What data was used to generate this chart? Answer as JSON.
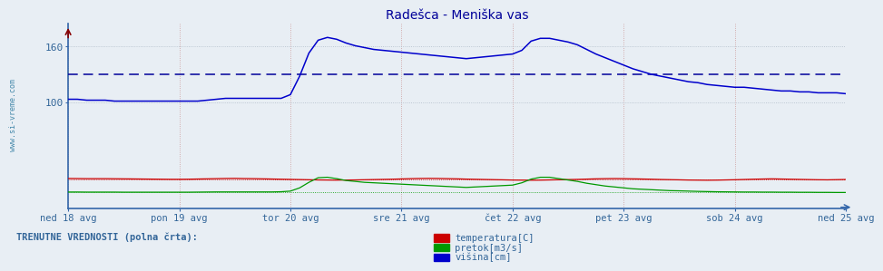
{
  "title": "Radešca - Meniška vas",
  "title_color": "#000099",
  "background_color": "#e8eef4",
  "plot_bg_color": "#e8eef4",
  "x_labels": [
    "ned 18 avg",
    "pon 19 avg",
    "tor 20 avg",
    "sre 21 avg",
    "čet 22 avg",
    "pet 23 avg",
    "sob 24 avg",
    "ned 25 avg"
  ],
  "x_positions": [
    0,
    12,
    24,
    36,
    48,
    60,
    72,
    84
  ],
  "yticks": [
    100,
    160
  ],
  "ylim_min": -15,
  "ylim_max": 185,
  "xlim_min": 0,
  "xlim_max": 84,
  "avg_line_value": 130,
  "avg_line_color": "#000099",
  "hgrid_color": "#b0bcc8",
  "vgrid_color": "#cc9999",
  "temp_color": "#cc0000",
  "flow_color": "#009900",
  "height_color": "#0000cc",
  "axis_color": "#3366aa",
  "axis_label_color": "#336699",
  "watermark_color": "#4488aa",
  "legend_label_temp": "temperatura[C]",
  "legend_label_flow": "pretok[m3/s]",
  "legend_label_height": "višina[cm]",
  "bottom_label": "TRENUTNE VREDNOSTI (polna črta):",
  "n_points": 85,
  "height_data": [
    103,
    103,
    102,
    102,
    102,
    101,
    101,
    101,
    101,
    101,
    101,
    101,
    101,
    101,
    101,
    102,
    103,
    104,
    104,
    104,
    104,
    104,
    104,
    104,
    108,
    128,
    153,
    167,
    170,
    168,
    164,
    161,
    159,
    157,
    156,
    155,
    154,
    153,
    152,
    151,
    150,
    149,
    148,
    147,
    148,
    149,
    150,
    151,
    152,
    156,
    166,
    169,
    169,
    167,
    165,
    162,
    157,
    152,
    148,
    144,
    140,
    136,
    133,
    130,
    128,
    126,
    124,
    122,
    121,
    119,
    118,
    117,
    116,
    116,
    115,
    114,
    113,
    112,
    112,
    111,
    111,
    110,
    110,
    110,
    109
  ],
  "temp_data": [
    17.2,
    17.1,
    17.0,
    17.0,
    17.0,
    16.9,
    16.8,
    16.7,
    16.6,
    16.5,
    16.4,
    16.3,
    16.3,
    16.4,
    16.6,
    16.8,
    17.0,
    17.2,
    17.3,
    17.1,
    17.0,
    16.8,
    16.6,
    16.4,
    16.2,
    16.0,
    15.8,
    15.6,
    15.5,
    15.4,
    15.5,
    15.6,
    15.8,
    16.0,
    16.2,
    16.4,
    16.7,
    17.0,
    17.2,
    17.3,
    17.2,
    17.0,
    16.8,
    16.5,
    16.3,
    16.1,
    15.9,
    15.7,
    15.5,
    15.4,
    15.3,
    15.4,
    15.6,
    15.8,
    16.0,
    16.2,
    16.5,
    16.8,
    17.0,
    17.1,
    17.0,
    16.8,
    16.6,
    16.4,
    16.1,
    15.9,
    15.7,
    15.5,
    15.4,
    15.3,
    15.4,
    15.6,
    15.8,
    16.1,
    16.4,
    16.6,
    16.8,
    16.6,
    16.4,
    16.2,
    16.0,
    15.8,
    15.7,
    15.9,
    16.1
  ],
  "flow_data": [
    2.5,
    2.5,
    2.4,
    2.4,
    2.4,
    2.4,
    2.3,
    2.3,
    2.3,
    2.3,
    2.3,
    2.3,
    2.3,
    2.3,
    2.4,
    2.5,
    2.6,
    2.6,
    2.6,
    2.6,
    2.6,
    2.6,
    2.6,
    2.8,
    3.5,
    7.0,
    13.0,
    18.0,
    18.5,
    17.0,
    15.0,
    14.0,
    13.0,
    12.5,
    12.0,
    11.5,
    11.0,
    10.5,
    10.0,
    9.5,
    9.0,
    8.5,
    8.0,
    7.5,
    8.0,
    8.5,
    9.0,
    9.5,
    10.0,
    12.5,
    16.5,
    18.5,
    18.5,
    17.0,
    15.5,
    14.0,
    12.0,
    10.5,
    9.0,
    8.0,
    7.0,
    6.0,
    5.5,
    5.0,
    4.5,
    4.0,
    3.8,
    3.5,
    3.2,
    3.0,
    2.8,
    2.7,
    2.6,
    2.5,
    2.5,
    2.4,
    2.4,
    2.3,
    2.3,
    2.2,
    2.2,
    2.1,
    2.1,
    2.0,
    2.0
  ]
}
